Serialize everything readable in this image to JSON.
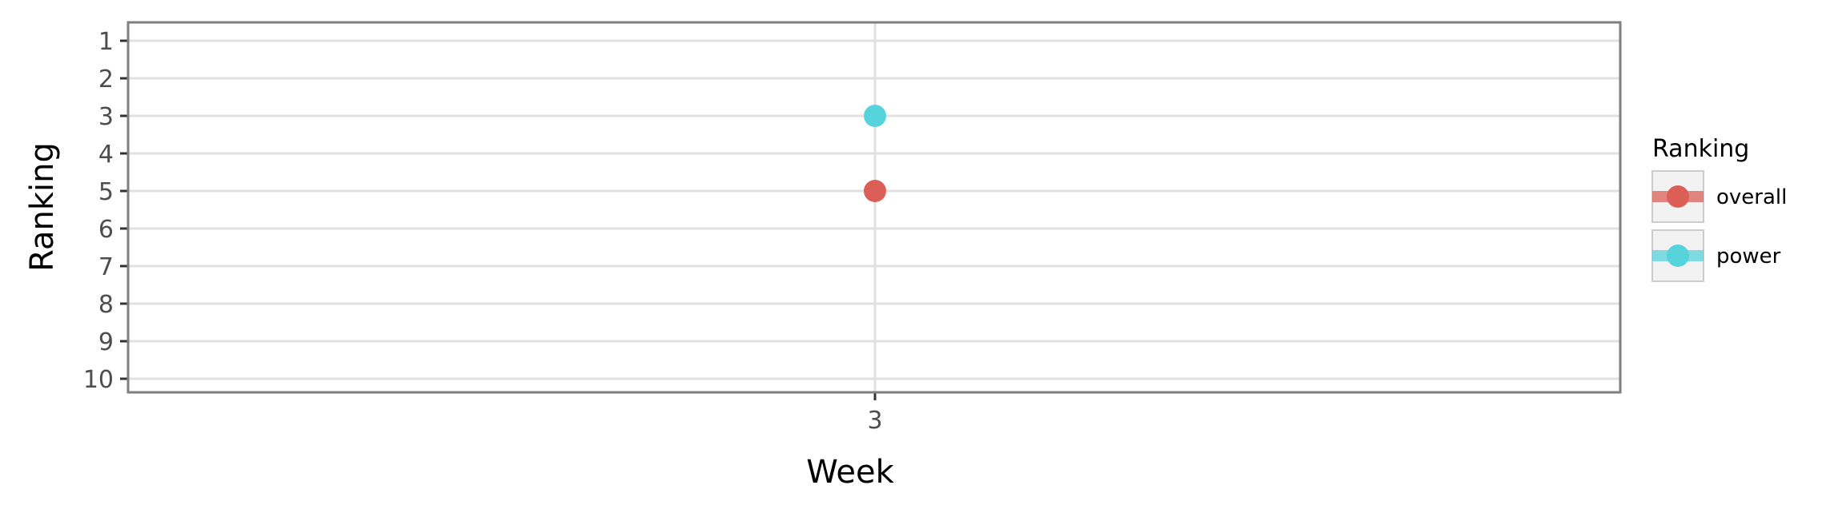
{
  "chart_data": {
    "type": "scatter",
    "xlabel": "Week",
    "ylabel": "Ranking",
    "x_ticks": [
      "3"
    ],
    "y_ticks": [
      "1",
      "2",
      "3",
      "4",
      "5",
      "6",
      "7",
      "8",
      "9",
      "10"
    ],
    "ylim": [
      1,
      10
    ],
    "y_reversed": true,
    "grid": true,
    "legend": {
      "title": "Ranking",
      "position": "right"
    },
    "series": [
      {
        "name": "overall",
        "color": "#db5f57",
        "points": [
          {
            "x": 3,
            "y": 5
          }
        ]
      },
      {
        "name": "power",
        "color": "#57d3db",
        "points": [
          {
            "x": 3,
            "y": 3
          }
        ]
      }
    ]
  }
}
